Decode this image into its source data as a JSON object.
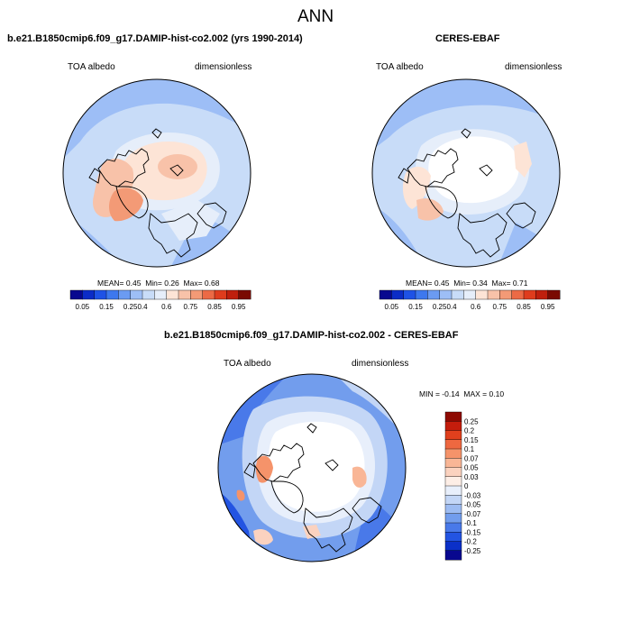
{
  "title": "ANN",
  "top_left": {
    "title": "b.e21.B1850cmip6.f09_g17.DAMIP-hist-co2.002 (yrs 1990-2014)",
    "variable": "TOA albedo",
    "units": "dimensionless",
    "stats": {
      "mean_label": "MEAN=",
      "mean": "0.45",
      "min_label": "Min=",
      "min": "0.26",
      "max_label": "Max=",
      "max": "0.68"
    }
  },
  "top_right": {
    "title": "CERES-EBAF",
    "variable": "TOA albedo",
    "units": "dimensionless",
    "stats": {
      "mean_label": "MEAN=",
      "mean": "0.45",
      "min_label": "Min=",
      "min": "0.34",
      "max_label": "Max=",
      "max": "0.71"
    }
  },
  "bottom": {
    "title": "b.e21.B1850cmip6.f09_g17.DAMIP-hist-co2.002 - CERES-EBAF",
    "variable": "TOA albedo",
    "units": "dimensionless",
    "stats": {
      "min_label": "MIN =",
      "min": "-0.14",
      "max_label": "MAX =",
      "max": "0.10"
    }
  },
  "colorbar_abs": {
    "ticks": [
      "0.05",
      "0.15",
      "0.25",
      "0.4",
      "0.6",
      "0.75",
      "0.85",
      "0.95"
    ],
    "colors": [
      "#08088f",
      "#0b2cc7",
      "#1e52e6",
      "#3d78ee",
      "#6b9bf2",
      "#9dbef6",
      "#c8dcf8",
      "#e6eefa",
      "#fde4d6",
      "#f8c2a9",
      "#f39a76",
      "#ec6a45",
      "#df3c1d",
      "#bf1f0d",
      "#7a0a02"
    ]
  },
  "colorbar_diff": {
    "ticks": [
      "0.25",
      "0.2",
      "0.15",
      "0.1",
      "0.07",
      "0.05",
      "0.03",
      "0",
      "-0.03",
      "-0.05",
      "-0.07",
      "-0.1",
      "-0.15",
      "-0.2",
      "-0.25"
    ],
    "colors": [
      "#8e0a02",
      "#c41d0c",
      "#e0401d",
      "#ee6840",
      "#f5936a",
      "#f9b696",
      "#fbd2bf",
      "#fdeee6",
      "#e8effb",
      "#c3d6f6",
      "#9dbcf2",
      "#729ded",
      "#4979e9",
      "#2354e2",
      "#0b30c8",
      "#08088f"
    ]
  }
}
